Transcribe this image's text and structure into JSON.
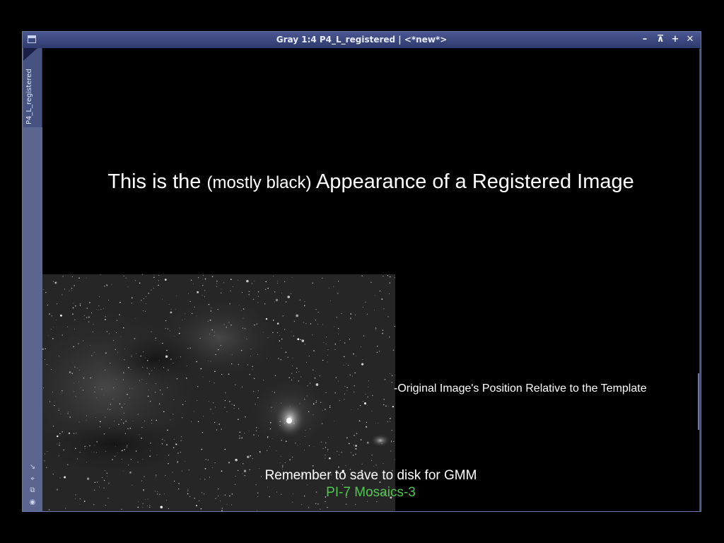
{
  "window": {
    "title": "Gray 1:4 P4_L_registered | <*new*>",
    "controls": [
      "minimize",
      "shade",
      "maximize",
      "close"
    ]
  },
  "sidebar": {
    "tab_label": "P4_L_registered",
    "icons": [
      "fit-icon",
      "zoom-icon",
      "clone-icon",
      "target-icon"
    ]
  },
  "content": {
    "heading_before": "This is the",
    "heading_small": "(mostly black)",
    "heading_after": "Appearance of a Registered Image",
    "position_note": "-Original Image's Position Relative to the Template",
    "reminder": "Remember to save to disk for GMM",
    "credit": "PI-7 Mosaics-3"
  },
  "colors": {
    "titlebar": "#3b4780",
    "frame": "#3e4a7a",
    "credit_green": "#4ec84e"
  }
}
